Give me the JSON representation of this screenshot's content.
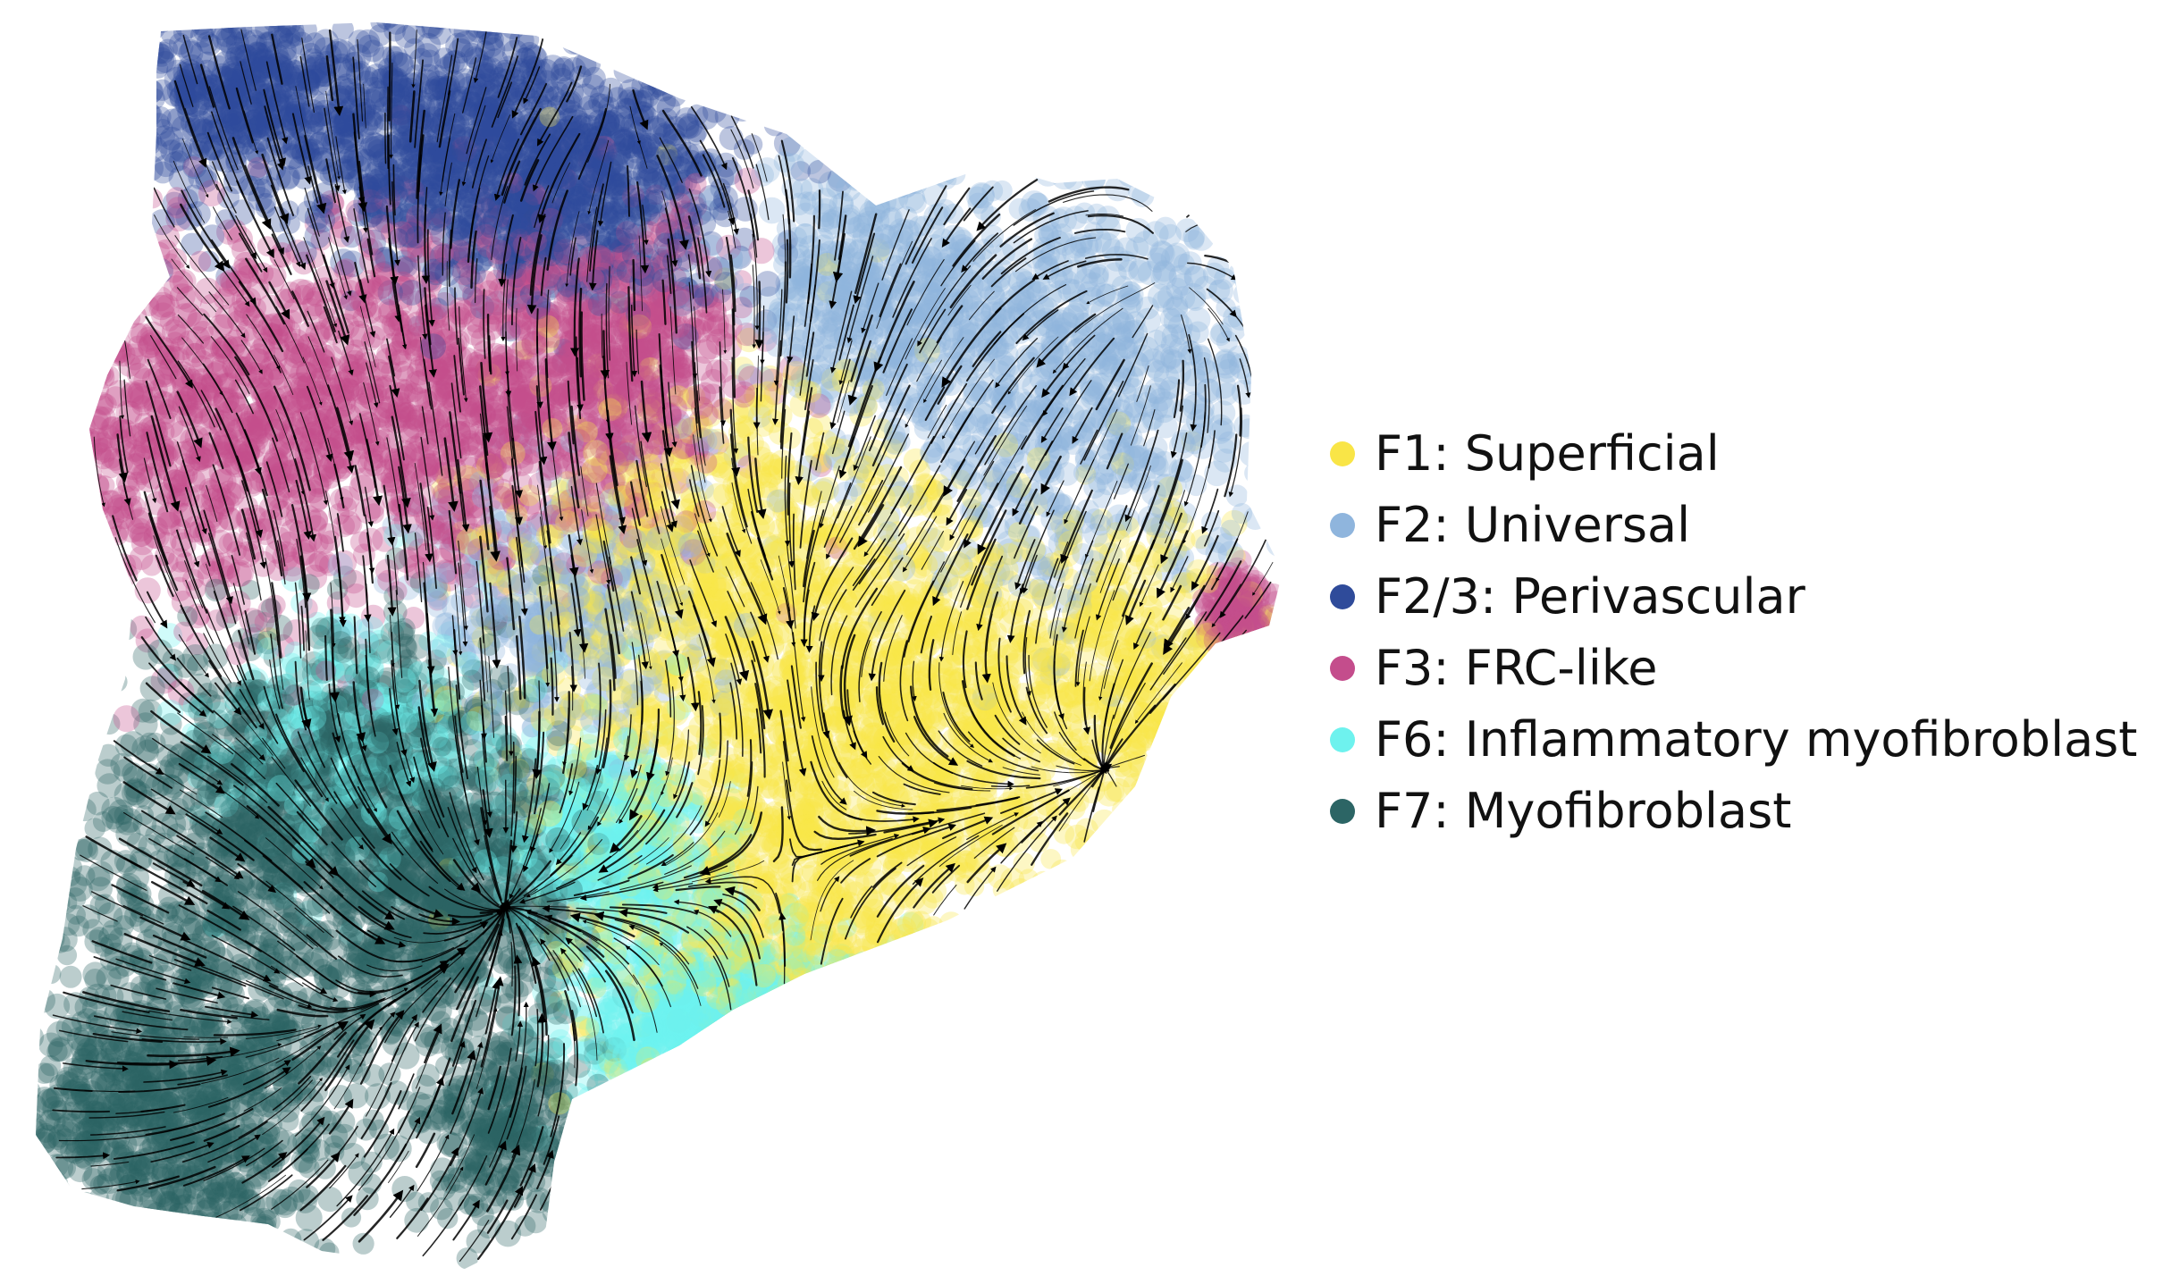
{
  "chart_data": {
    "type": "scatter",
    "subtype": "embedding with velocity streamlines",
    "title": "",
    "xlabel": "",
    "ylabel": "",
    "axes_visible": false,
    "grid": false,
    "legend_position": "right",
    "streamline_color": "#000000",
    "series": [
      {
        "name": "F1: Superficial",
        "color": "#f9e547",
        "regions": [
          {
            "cx": 0.55,
            "cy": 0.45,
            "sx": 0.09,
            "sy": 0.09,
            "w": 1.0
          },
          {
            "cx": 0.72,
            "cy": 0.55,
            "sx": 0.07,
            "sy": 0.08,
            "w": 0.8
          },
          {
            "cx": 0.6,
            "cy": 0.7,
            "sx": 0.09,
            "sy": 0.09,
            "w": 1.0
          },
          {
            "cx": 0.88,
            "cy": 0.52,
            "sx": 0.05,
            "sy": 0.06,
            "w": 0.4
          }
        ]
      },
      {
        "name": "F2: Universal",
        "color": "#8fb5dd",
        "regions": [
          {
            "cx": 0.83,
            "cy": 0.27,
            "sx": 0.08,
            "sy": 0.09,
            "w": 1.0
          },
          {
            "cx": 0.67,
            "cy": 0.21,
            "sx": 0.05,
            "sy": 0.05,
            "w": 0.5
          },
          {
            "cx": 0.42,
            "cy": 0.47,
            "sx": 0.06,
            "sy": 0.05,
            "w": 0.4
          }
        ]
      },
      {
        "name": "F2/3: Perivascular",
        "color": "#2f4b9a",
        "regions": [
          {
            "cx": 0.3,
            "cy": 0.08,
            "sx": 0.11,
            "sy": 0.05,
            "w": 1.0
          },
          {
            "cx": 0.42,
            "cy": 0.13,
            "sx": 0.07,
            "sy": 0.05,
            "w": 0.8
          },
          {
            "cx": 0.16,
            "cy": 0.05,
            "sx": 0.04,
            "sy": 0.03,
            "w": 0.3
          }
        ]
      },
      {
        "name": "F3: FRC-like",
        "color": "#c44d8c",
        "regions": [
          {
            "cx": 0.14,
            "cy": 0.32,
            "sx": 0.08,
            "sy": 0.08,
            "w": 1.0
          },
          {
            "cx": 0.35,
            "cy": 0.3,
            "sx": 0.09,
            "sy": 0.07,
            "w": 1.0
          },
          {
            "cx": 0.47,
            "cy": 0.25,
            "sx": 0.05,
            "sy": 0.05,
            "w": 0.5
          },
          {
            "cx": 0.96,
            "cy": 0.47,
            "sx": 0.012,
            "sy": 0.015,
            "w": 0.15
          }
        ]
      },
      {
        "name": "F6: Inflammatory myofibroblast",
        "color": "#6ef2ee",
        "regions": [
          {
            "cx": 0.55,
            "cy": 0.8,
            "sx": 0.06,
            "sy": 0.04,
            "w": 1.0
          },
          {
            "cx": 0.46,
            "cy": 0.66,
            "sx": 0.04,
            "sy": 0.04,
            "w": 0.5
          },
          {
            "cx": 0.26,
            "cy": 0.58,
            "sx": 0.06,
            "sy": 0.05,
            "w": 0.4
          }
        ]
      },
      {
        "name": "F7: Myofibroblast",
        "color": "#2c6565",
        "regions": [
          {
            "cx": 0.17,
            "cy": 0.74,
            "sx": 0.1,
            "sy": 0.1,
            "w": 1.0
          },
          {
            "cx": 0.24,
            "cy": 0.6,
            "sx": 0.08,
            "sy": 0.06,
            "w": 0.8
          },
          {
            "cx": 0.1,
            "cy": 0.88,
            "sx": 0.07,
            "sy": 0.06,
            "w": 0.8
          },
          {
            "cx": 0.33,
            "cy": 0.7,
            "sx": 0.05,
            "sy": 0.05,
            "w": 0.6
          },
          {
            "cx": 0.38,
            "cy": 0.88,
            "sx": 0.03,
            "sy": 0.04,
            "w": 0.3
          }
        ]
      }
    ]
  }
}
